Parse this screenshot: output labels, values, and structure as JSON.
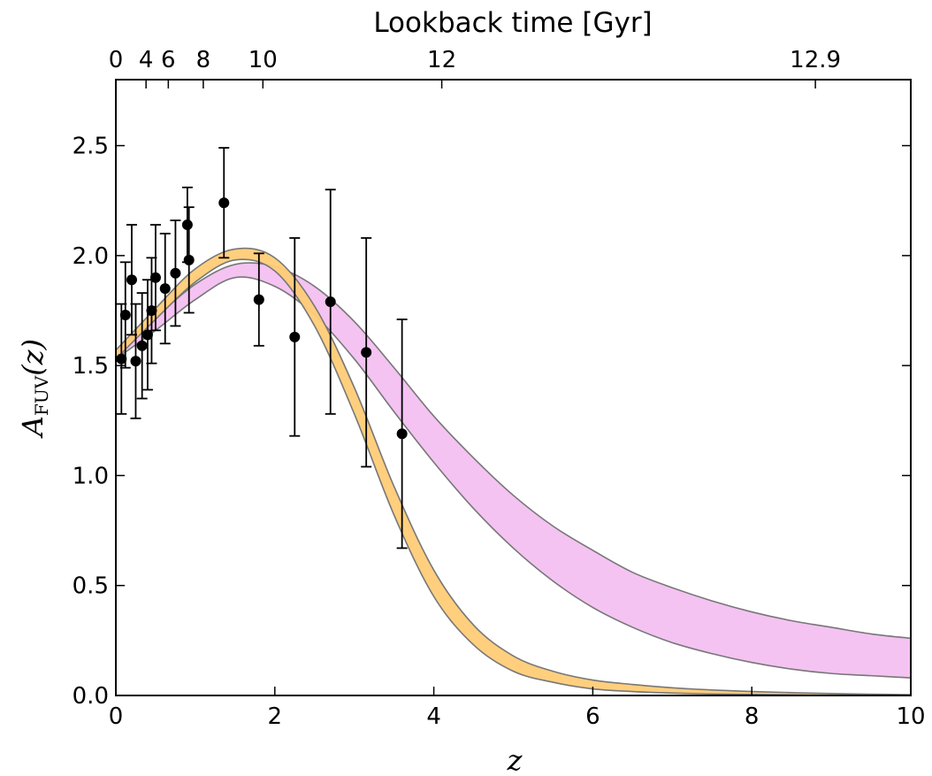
{
  "chart_data": {
    "type": "scatter",
    "xlabel": "z",
    "ylabel": "A_FUV(z)",
    "ylabel_main": "A",
    "ylabel_sub": "FUV",
    "ylabel_arg": "(z)",
    "top_xlabel": "Lookback time [Gyr]",
    "xlim": [
      0,
      10
    ],
    "ylim": [
      0,
      2.8
    ],
    "xticks": [
      0,
      2,
      4,
      6,
      8,
      10
    ],
    "xtick_labels": [
      "0",
      "2",
      "4",
      "6",
      "8",
      "10"
    ],
    "yticks": [
      0.0,
      0.5,
      1.0,
      1.5,
      2.0,
      2.5
    ],
    "ytick_labels": [
      "0.0",
      "0.5",
      "1.0",
      "1.5",
      "2.0",
      "2.5"
    ],
    "top_ticks": [
      {
        "label": "0",
        "z": 0.0
      },
      {
        "label": "4",
        "z": 0.38
      },
      {
        "label": "6",
        "z": 0.66
      },
      {
        "label": "8",
        "z": 1.1
      },
      {
        "label": "10",
        "z": 1.85
      },
      {
        "label": "12",
        "z": 4.1
      },
      {
        "label": "12.9",
        "z": 8.8
      }
    ],
    "grid": false,
    "colors": {
      "orange_band": "#ffcc77",
      "pink_band": "#f2b8f0",
      "overlap": "#f0a0a8",
      "band_edge": "#777777",
      "points": "#000000"
    },
    "bands": [
      {
        "color": "pink",
        "x": [
          0.0,
          0.5,
          1.0,
          1.5,
          2.0,
          2.5,
          3.0,
          3.5,
          4.0,
          4.5,
          5.0,
          5.5,
          6.0,
          6.5,
          7.0,
          7.5,
          8.0,
          8.5,
          9.0,
          9.5,
          10.0
        ],
        "upper": [
          1.57,
          1.72,
          1.87,
          1.96,
          1.95,
          1.86,
          1.7,
          1.49,
          1.27,
          1.08,
          0.91,
          0.77,
          0.66,
          0.56,
          0.49,
          0.43,
          0.38,
          0.34,
          0.31,
          0.28,
          0.26
        ],
        "lower": [
          1.53,
          1.66,
          1.8,
          1.9,
          1.86,
          1.73,
          1.53,
          1.29,
          1.06,
          0.85,
          0.67,
          0.52,
          0.4,
          0.31,
          0.24,
          0.19,
          0.15,
          0.12,
          0.1,
          0.09,
          0.08
        ]
      },
      {
        "color": "orange",
        "x": [
          0.0,
          0.5,
          1.0,
          1.5,
          2.0,
          2.5,
          3.0,
          3.5,
          4.0,
          4.5,
          5.0,
          5.5,
          6.0,
          6.5,
          7.0,
          7.5,
          8.0,
          8.5,
          9.0,
          9.5,
          10.0
        ],
        "upper": [
          1.57,
          1.76,
          1.94,
          2.03,
          1.99,
          1.77,
          1.4,
          0.95,
          0.57,
          0.32,
          0.18,
          0.11,
          0.07,
          0.05,
          0.035,
          0.025,
          0.018,
          0.013,
          0.009,
          0.006,
          0.004
        ],
        "lower": [
          1.53,
          1.71,
          1.88,
          1.98,
          1.93,
          1.68,
          1.28,
          0.82,
          0.45,
          0.23,
          0.11,
          0.06,
          0.03,
          0.018,
          0.011,
          0.007,
          0.005,
          0.003,
          0.002,
          0.001,
          0.0
        ]
      }
    ],
    "points": [
      {
        "x": 0.07,
        "y": 1.53,
        "err": 0.25
      },
      {
        "x": 0.12,
        "y": 1.73,
        "err": 0.24
      },
      {
        "x": 0.2,
        "y": 1.89,
        "err": 0.25
      },
      {
        "x": 0.25,
        "y": 1.52,
        "err": 0.26
      },
      {
        "x": 0.33,
        "y": 1.59,
        "err": 0.24
      },
      {
        "x": 0.4,
        "y": 1.64,
        "err": 0.25
      },
      {
        "x": 0.45,
        "y": 1.75,
        "err": 0.24
      },
      {
        "x": 0.5,
        "y": 1.9,
        "err": 0.24
      },
      {
        "x": 0.62,
        "y": 1.85,
        "err": 0.25
      },
      {
        "x": 0.75,
        "y": 1.92,
        "err": 0.24
      },
      {
        "x": 0.9,
        "y": 2.14,
        "err": 0.17
      },
      {
        "x": 0.92,
        "y": 1.98,
        "err": 0.24
      },
      {
        "x": 1.36,
        "y": 2.24,
        "err": 0.25
      },
      {
        "x": 1.8,
        "y": 1.8,
        "err": 0.21
      },
      {
        "x": 2.25,
        "y": 1.63,
        "err": 0.45
      },
      {
        "x": 2.7,
        "y": 1.79,
        "err": 0.51
      },
      {
        "x": 3.15,
        "y": 1.56,
        "err": 0.52
      },
      {
        "x": 3.6,
        "y": 1.19,
        "err": 0.52
      }
    ]
  }
}
